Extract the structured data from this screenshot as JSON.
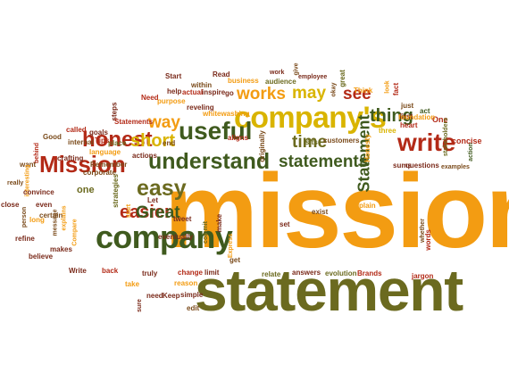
{
  "palette": {
    "orange": "#f39c12",
    "olive": "#6b6a1f",
    "green": "#3f5a1e",
    "red": "#b32a17",
    "yellow": "#d9b400",
    "brown": "#7a4a1a",
    "maroon": "#7a2a1a"
  },
  "words": [
    {
      "text": "mission",
      "color": "orange",
      "rot": 0
    },
    {
      "text": "statement",
      "color": "olive",
      "rot": 0
    },
    {
      "text": "company",
      "color": "green",
      "rot": 0
    },
    {
      "text": "company's",
      "color": "yellow",
      "rot": 0
    },
    {
      "text": "understand",
      "color": "green",
      "rot": 0
    },
    {
      "text": "Mission",
      "color": "red",
      "rot": 0
    },
    {
      "text": "honest",
      "color": "red",
      "rot": 0
    },
    {
      "text": "useful",
      "color": "green",
      "rot": 0
    },
    {
      "text": "easy",
      "color": "olive",
      "rot": 0
    },
    {
      "text": "write",
      "color": "red",
      "rot": 0
    },
    {
      "text": "statements",
      "color": "green",
      "rot": 0
    },
    {
      "text": "thing",
      "color": "green",
      "rot": 0
    },
    {
      "text": "Statement",
      "color": "green",
      "rot": -90
    },
    {
      "text": "works",
      "color": "orange",
      "rot": 0
    },
    {
      "text": "short",
      "color": "yellow",
      "rot": 0
    },
    {
      "text": "easier",
      "color": "red",
      "rot": 0
    },
    {
      "text": "Great",
      "color": "green",
      "rot": 0
    },
    {
      "text": "may",
      "color": "yellow",
      "rot": 0
    },
    {
      "text": "way",
      "color": "orange",
      "rot": 0
    },
    {
      "text": "time",
      "color": "olive",
      "rot": 0
    },
    {
      "text": "see",
      "color": "red",
      "rot": 0
    },
    {
      "text": "one",
      "color": "olive",
      "rot": 0
    },
    {
      "text": "Read",
      "color": "maroon",
      "rot": 0
    },
    {
      "text": "within",
      "color": "brown",
      "rot": 0
    },
    {
      "text": "business",
      "color": "orange",
      "rot": 0
    },
    {
      "text": "work",
      "color": "maroon",
      "rot": 0
    },
    {
      "text": "audience",
      "color": "olive",
      "rot": 0
    },
    {
      "text": "give",
      "color": "brown",
      "rot": -90
    },
    {
      "text": "employee",
      "color": "maroon",
      "rot": 0
    },
    {
      "text": "great",
      "color": "olive",
      "rot": -90
    },
    {
      "text": "okay",
      "color": "brown",
      "rot": -90
    },
    {
      "text": "Think",
      "color": "orange",
      "rot": 0
    },
    {
      "text": "look",
      "color": "orange",
      "rot": -90
    },
    {
      "text": "fact",
      "color": "red",
      "rot": -90
    },
    {
      "text": "just",
      "color": "brown",
      "rot": 0
    },
    {
      "text": "first",
      "color": "maroon",
      "rot": 0
    },
    {
      "text": "act",
      "color": "green",
      "rot": 0
    },
    {
      "text": "heart",
      "color": "red",
      "rot": 0
    },
    {
      "text": "One",
      "color": "red",
      "rot": 0
    },
    {
      "text": "foundation",
      "color": "orange",
      "rot": 0
    },
    {
      "text": "three",
      "color": "yellow",
      "rot": 0
    },
    {
      "text": "stakeholders",
      "color": "olive",
      "rot": -90
    },
    {
      "text": "concise",
      "color": "red",
      "rot": 0
    },
    {
      "text": "action",
      "color": "green",
      "rot": -90
    },
    {
      "text": "examples",
      "color": "brown",
      "rot": 0
    },
    {
      "text": "questions",
      "color": "maroon",
      "rot": 0
    },
    {
      "text": "sums",
      "color": "maroon",
      "rot": 0
    },
    {
      "text": "Honesty",
      "color": "orange",
      "rot": -90
    },
    {
      "text": "customers",
      "color": "brown",
      "rot": 0
    },
    {
      "text": "sits",
      "color": "olive",
      "rot": 0
    },
    {
      "text": "originally",
      "color": "brown",
      "rot": -90
    },
    {
      "text": "Start",
      "color": "maroon",
      "rot": 0
    },
    {
      "text": "actual",
      "color": "red",
      "rot": 0
    },
    {
      "text": "inspire",
      "color": "maroon",
      "rot": 0
    },
    {
      "text": "go",
      "color": "maroon",
      "rot": 0
    },
    {
      "text": "help",
      "color": "maroon",
      "rot": 0
    },
    {
      "text": "Need",
      "color": "red",
      "rot": 0
    },
    {
      "text": "purpose",
      "color": "orange",
      "rot": 0
    },
    {
      "text": "reveling",
      "color": "maroon",
      "rot": 0
    },
    {
      "text": "whitewashing",
      "color": "orange",
      "rot": 0
    },
    {
      "text": "steps",
      "color": "maroon",
      "rot": -90
    },
    {
      "text": "Statements",
      "color": "red",
      "rot": 0
    },
    {
      "text": "called",
      "color": "red",
      "rot": 0
    },
    {
      "text": "goals",
      "color": "maroon",
      "rot": 0
    },
    {
      "text": "end",
      "color": "brown",
      "rot": 0
    },
    {
      "text": "aligns",
      "color": "red",
      "rot": 0
    },
    {
      "text": "Good",
      "color": "brown",
      "rot": 0
    },
    {
      "text": "internal",
      "color": "brown",
      "rot": 0
    },
    {
      "text": "Tips",
      "color": "red",
      "rot": 0
    },
    {
      "text": "place",
      "color": "olive",
      "rot": 0
    },
    {
      "text": "language",
      "color": "orange",
      "rot": 0
    },
    {
      "text": "crafting",
      "color": "maroon",
      "rot": 0
    },
    {
      "text": "actions",
      "color": "maroon",
      "rot": 0
    },
    {
      "text": "Remember",
      "color": "brown",
      "rot": 0
    },
    {
      "text": "corporate",
      "color": "brown",
      "rot": 0
    },
    {
      "text": "strategies",
      "color": "olive",
      "rot": -90
    },
    {
      "text": "behind",
      "color": "red",
      "rot": -90
    },
    {
      "text": "want",
      "color": "brown",
      "rot": 0
    },
    {
      "text": "interesting",
      "color": "orange",
      "rot": -90
    },
    {
      "text": "really",
      "color": "brown",
      "rot": 0
    },
    {
      "text": "convince",
      "color": "maroon",
      "rot": 0
    },
    {
      "text": "even",
      "color": "maroon",
      "rot": 0
    },
    {
      "text": "certain",
      "color": "brown",
      "rot": 0
    },
    {
      "text": "close",
      "color": "maroon",
      "rot": 0
    },
    {
      "text": "person",
      "color": "brown",
      "rot": -90
    },
    {
      "text": "long",
      "color": "orange",
      "rot": 0
    },
    {
      "text": "message",
      "color": "brown",
      "rot": -90
    },
    {
      "text": "explains",
      "color": "orange",
      "rot": -90
    },
    {
      "text": "Compare",
      "color": "orange",
      "rot": -90
    },
    {
      "text": "refine",
      "color": "maroon",
      "rot": 0
    },
    {
      "text": "makes",
      "color": "maroon",
      "rot": 0
    },
    {
      "text": "believe",
      "color": "maroon",
      "rot": 0
    },
    {
      "text": "Write",
      "color": "maroon",
      "rot": 0
    },
    {
      "text": "back",
      "color": "red",
      "rot": 0
    },
    {
      "text": "Let",
      "color": "maroon",
      "rot": 0
    },
    {
      "text": "start",
      "color": "orange",
      "rot": -90
    },
    {
      "text": "tweet",
      "color": "maroon",
      "rot": 0
    },
    {
      "text": "make",
      "color": "maroon",
      "rot": -90
    },
    {
      "text": "commit",
      "color": "olive",
      "rot": -90
    },
    {
      "text": "eventually",
      "color": "maroon",
      "rot": 0
    },
    {
      "text": "Express",
      "color": "orange",
      "rot": -90
    },
    {
      "text": "set",
      "color": "maroon",
      "rot": 0
    },
    {
      "text": "exist",
      "color": "brown",
      "rot": 0
    },
    {
      "text": "plain",
      "color": "orange",
      "rot": 0
    },
    {
      "text": "words",
      "color": "red",
      "rot": -90
    },
    {
      "text": "whether",
      "color": "brown",
      "rot": -90
    },
    {
      "text": "truly",
      "color": "maroon",
      "rot": 0
    },
    {
      "text": "change",
      "color": "red",
      "rot": 0
    },
    {
      "text": "limit",
      "color": "maroon",
      "rot": 0
    },
    {
      "text": "get",
      "color": "brown",
      "rot": 0
    },
    {
      "text": "relate",
      "color": "olive",
      "rot": 0
    },
    {
      "text": "answers",
      "color": "maroon",
      "rot": 0
    },
    {
      "text": "evolution",
      "color": "olive",
      "rot": 0
    },
    {
      "text": "Brands",
      "color": "red",
      "rot": 0
    },
    {
      "text": "jargon",
      "color": "red",
      "rot": 0
    },
    {
      "text": "take",
      "color": "orange",
      "rot": 0
    },
    {
      "text": "reason",
      "color": "orange",
      "rot": 0
    },
    {
      "text": "need",
      "color": "maroon",
      "rot": 0
    },
    {
      "text": "Keep",
      "color": "maroon",
      "rot": 0
    },
    {
      "text": "simple",
      "color": "maroon",
      "rot": 0
    },
    {
      "text": "sure",
      "color": "maroon",
      "rot": -90
    },
    {
      "text": "edit",
      "color": "brown",
      "rot": 0
    }
  ]
}
